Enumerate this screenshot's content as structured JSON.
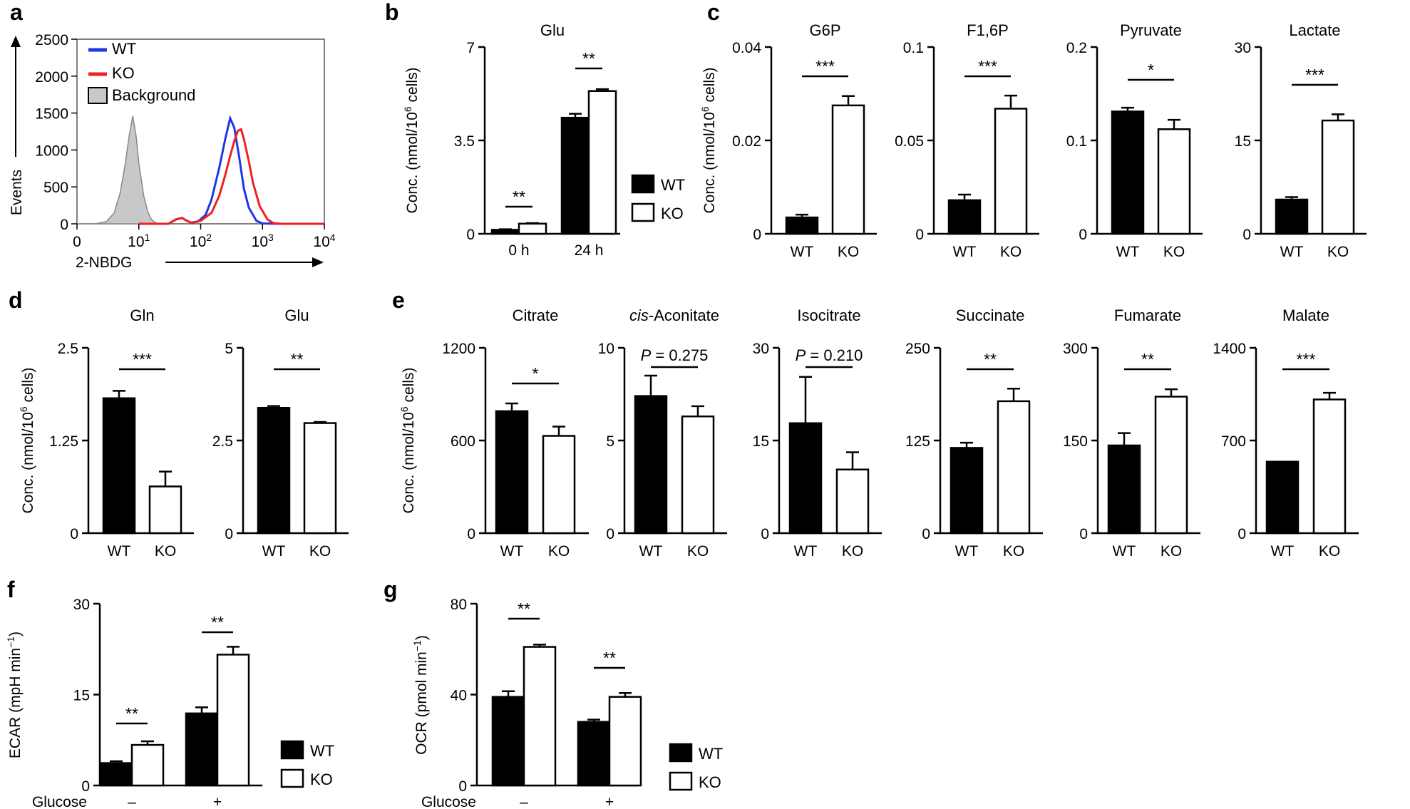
{
  "chart_data": [
    {
      "panel": "a",
      "type": "histogram",
      "title": "",
      "xlabel": "2-NBDG",
      "ylabel": "Events",
      "xscale": "log",
      "xlim": [
        0,
        10000
      ],
      "ylim": [
        0,
        2500
      ],
      "yticks": [
        "0",
        "500",
        "1000",
        "1500",
        "2000",
        "2500"
      ],
      "xticks": [
        "0",
        "10<sup>1</sup>",
        "10<sup>2</sup>",
        "10<sup>3</sup>",
        "10<sup>4</sup>"
      ],
      "xtick_labels": [
        {
          "base": "0",
          "exp": ""
        },
        {
          "base": "10",
          "exp": "1"
        },
        {
          "base": "10",
          "exp": "2"
        },
        {
          "base": "10",
          "exp": "3"
        },
        {
          "base": "10",
          "exp": "4"
        }
      ],
      "legend": [
        "WT",
        "KO",
        "Background"
      ],
      "legend_location": "top-left",
      "series": [
        {
          "name": "Background",
          "color": "#c8c8c8",
          "filled": true,
          "x": [
            0.6,
            2,
            3,
            4,
            5,
            6,
            7,
            8,
            9,
            10,
            12,
            14,
            16,
            18,
            20,
            24,
            30
          ],
          "y": [
            0,
            0,
            30,
            150,
            420,
            800,
            1200,
            1460,
            1200,
            820,
            380,
            160,
            60,
            20,
            5,
            0,
            0
          ]
        },
        {
          "name": "WT",
          "color": "#1f36e8",
          "filled": false,
          "x": [
            10,
            30,
            40,
            50,
            60,
            70,
            90,
            120,
            150,
            200,
            250,
            300,
            350,
            420,
            500,
            600,
            800,
            1000,
            2000,
            10000
          ],
          "y": [
            0,
            0,
            60,
            80,
            40,
            15,
            30,
            120,
            330,
            760,
            1150,
            1430,
            1300,
            900,
            480,
            220,
            40,
            5,
            0,
            0
          ]
        },
        {
          "name": "KO",
          "color": "#ee2222",
          "filled": false,
          "x": [
            10,
            30,
            40,
            50,
            60,
            70,
            100,
            150,
            200,
            250,
            300,
            350,
            400,
            450,
            500,
            600,
            700,
            900,
            1200,
            1500,
            2000,
            10000
          ],
          "y": [
            0,
            0,
            60,
            80,
            40,
            15,
            40,
            150,
            380,
            660,
            920,
            1120,
            1260,
            1280,
            1150,
            850,
            560,
            240,
            60,
            10,
            0,
            0
          ]
        }
      ]
    },
    {
      "panel": "b",
      "type": "bar",
      "title": "Glu",
      "ylabel": "Conc. (nmol/10<sup>6</sup> cells)",
      "ylabel_parts": {
        "pre": "Conc. (nmol/10",
        "sup": "6",
        "post": " cells)"
      },
      "categories": [
        "0 h",
        "24 h"
      ],
      "ylim": [
        0,
        7
      ],
      "yticks": [
        "0",
        "3.5",
        "7"
      ],
      "series": [
        {
          "name": "WT",
          "values": [
            0.15,
            4.35
          ],
          "errors": [
            0.02,
            0.15
          ]
        },
        {
          "name": "KO",
          "values": [
            0.38,
            5.35
          ],
          "errors": [
            0.02,
            0.07
          ]
        }
      ],
      "significance": [
        "**",
        "**"
      ],
      "legend": [
        "WT",
        "KO"
      ],
      "legend_location": "right"
    },
    {
      "panel": "c",
      "type": "bar",
      "title": "G6P",
      "ylabel": "Conc. (nmol/10<sup>6</sup> cells)",
      "ylabel_parts": {
        "pre": "Conc. (nmol/10",
        "sup": "6",
        "post": " cells)"
      },
      "categories": [
        "WT",
        "KO"
      ],
      "values": [
        0.0035,
        0.0275
      ],
      "errors": [
        0.0006,
        0.002
      ],
      "ylim": [
        0,
        0.04
      ],
      "yticks": [
        "0",
        "0.02",
        "0.04"
      ],
      "significance": "***"
    },
    {
      "panel": "c",
      "type": "bar",
      "title": "F1,6P",
      "categories": [
        "WT",
        "KO"
      ],
      "values": [
        0.018,
        0.067
      ],
      "errors": [
        0.003,
        0.007
      ],
      "ylim": [
        0,
        0.1
      ],
      "yticks": [
        "0",
        "0.05",
        "0.1"
      ],
      "significance": "***"
    },
    {
      "panel": "c",
      "type": "bar",
      "title": "Pyruvate",
      "categories": [
        "WT",
        "KO"
      ],
      "values": [
        0.131,
        0.112
      ],
      "errors": [
        0.004,
        0.01
      ],
      "ylim": [
        0,
        0.2
      ],
      "yticks": [
        "0",
        "0.1",
        "0.2"
      ],
      "significance": "*"
    },
    {
      "panel": "c",
      "type": "bar",
      "title": "Lactate",
      "categories": [
        "WT",
        "KO"
      ],
      "values": [
        5.5,
        18.2
      ],
      "errors": [
        0.4,
        1.0
      ],
      "ylim": [
        0,
        30
      ],
      "yticks": [
        "0",
        "15",
        "30"
      ],
      "significance": "***"
    },
    {
      "panel": "d",
      "type": "bar",
      "title": "Gln",
      "ylabel": "Conc. (nmol/10<sup>6</sup> cells)",
      "ylabel_parts": {
        "pre": "Conc. (nmol/10",
        "sup": "6",
        "post": " cells)"
      },
      "categories": [
        "WT",
        "KO"
      ],
      "values": [
        1.82,
        0.63
      ],
      "errors": [
        0.1,
        0.2
      ],
      "ylim": [
        0,
        2.5
      ],
      "yticks": [
        "0",
        "1.25",
        "2.5"
      ],
      "significance": "***"
    },
    {
      "panel": "d",
      "type": "bar",
      "title": "Glu",
      "categories": [
        "WT",
        "KO"
      ],
      "values": [
        3.38,
        2.97
      ],
      "errors": [
        0.05,
        0.03
      ],
      "ylim": [
        0,
        5
      ],
      "yticks": [
        "0",
        "2.5",
        "5"
      ],
      "significance": "**"
    },
    {
      "panel": "e",
      "type": "bar",
      "title": "Citrate",
      "ylabel": "Conc. (nmol/10<sup>6</sup> cells)",
      "ylabel_parts": {
        "pre": "Conc. (nmol/10",
        "sup": "6",
        "post": " cells)"
      },
      "categories": [
        "WT",
        "KO"
      ],
      "values": [
        790,
        630
      ],
      "errors": [
        50,
        60
      ],
      "ylim": [
        0,
        1200
      ],
      "yticks": [
        "0",
        "600",
        "1200"
      ],
      "significance": "*"
    },
    {
      "panel": "e",
      "type": "bar",
      "title": "cis-Aconitate",
      "title_parts": {
        "italic": "cis",
        "rest": "-Aconitate"
      },
      "categories": [
        "WT",
        "KO"
      ],
      "values": [
        7.4,
        6.3
      ],
      "errors": [
        1.1,
        0.55
      ],
      "ylim": [
        0,
        10
      ],
      "yticks": [
        "0",
        "5",
        "10"
      ],
      "significance": "P = 0.275",
      "significance_parts": {
        "p": "P",
        "rest": " = 0.275"
      }
    },
    {
      "panel": "e",
      "type": "bar",
      "title": "Isocitrate",
      "categories": [
        "WT",
        "KO"
      ],
      "values": [
        17.8,
        10.3
      ],
      "errors": [
        7.5,
        2.8
      ],
      "ylim": [
        0,
        30
      ],
      "yticks": [
        "0",
        "15",
        "30"
      ],
      "significance": "P = 0.210",
      "significance_parts": {
        "p": "P",
        "rest": " = 0.210"
      }
    },
    {
      "panel": "e",
      "type": "bar",
      "title": "Succinate",
      "categories": [
        "WT",
        "KO"
      ],
      "values": [
        115,
        178
      ],
      "errors": [
        7,
        17
      ],
      "ylim": [
        0,
        250
      ],
      "yticks": [
        "0",
        "125",
        "250"
      ],
      "significance": "**"
    },
    {
      "panel": "e",
      "type": "bar",
      "title": "Fumarate",
      "categories": [
        "WT",
        "KO"
      ],
      "values": [
        142,
        221
      ],
      "errors": [
        20,
        12
      ],
      "ylim": [
        0,
        300
      ],
      "yticks": [
        "0",
        "150",
        "300"
      ],
      "significance": "**"
    },
    {
      "panel": "e",
      "type": "bar",
      "title": "Malate",
      "categories": [
        "WT",
        "KO"
      ],
      "values": [
        540,
        1010
      ],
      "errors": [
        0,
        50
      ],
      "ylim": [
        0,
        1400
      ],
      "yticks": [
        "0",
        "700",
        "1400"
      ],
      "significance": "***"
    },
    {
      "panel": "f",
      "type": "bar",
      "title": "",
      "ylabel": "ECAR (mpH min<sup>−1</sup>)",
      "ylabel_parts": {
        "pre": "ECAR (mpH min",
        "sup": "−1",
        "post": ")"
      },
      "xlabel": "Glucose",
      "categories": [
        "–",
        "+"
      ],
      "ylim": [
        0,
        30
      ],
      "yticks": [
        "0",
        "15",
        "30"
      ],
      "series": [
        {
          "name": "WT",
          "values": [
            3.7,
            11.9
          ],
          "errors": [
            0.3,
            1.0
          ]
        },
        {
          "name": "KO",
          "values": [
            6.7,
            21.6
          ],
          "errors": [
            0.6,
            1.3
          ]
        }
      ],
      "significance": [
        "**",
        "**"
      ],
      "legend": [
        "WT",
        "KO"
      ],
      "legend_location": "right"
    },
    {
      "panel": "g",
      "type": "bar",
      "title": "",
      "ylabel": "OCR (pmol min<sup>−1</sup>)",
      "ylabel_parts": {
        "pre": "OCR (pmol min",
        "sup": "−1",
        "post": ")"
      },
      "xlabel": "Glucose",
      "categories": [
        "–",
        "+"
      ],
      "ylim": [
        0,
        80
      ],
      "yticks": [
        "0",
        "40",
        "80"
      ],
      "series": [
        {
          "name": "WT",
          "values": [
            39,
            28
          ],
          "errors": [
            2.5,
            1.0
          ]
        },
        {
          "name": "KO",
          "values": [
            61,
            39
          ],
          "errors": [
            1.0,
            1.7
          ]
        }
      ],
      "significance": [
        "**",
        "**"
      ],
      "legend": [
        "WT",
        "KO"
      ],
      "legend_location": "right"
    }
  ],
  "panel_letters": [
    "a",
    "b",
    "c",
    "d",
    "e",
    "f",
    "g"
  ],
  "colors": {
    "wt_bar": "#000000",
    "ko_bar": "#ffffff",
    "wt_line": "#1f36e8",
    "ko_line": "#ee2222",
    "background_fill": "#c8c8c8"
  }
}
